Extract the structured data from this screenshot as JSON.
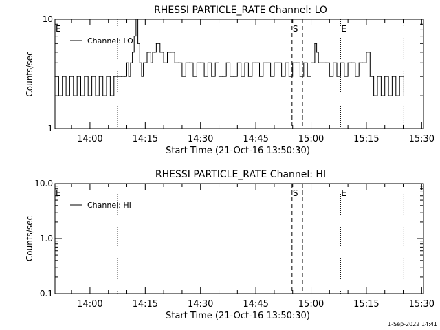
{
  "footer_stamp": "1-Sep-2022 14:41",
  "chart_data": [
    {
      "type": "line",
      "title": "RHESSI PARTICLE_RATE Channel: LO",
      "xlabel": "Start Time (21-Oct-16 13:50:30)",
      "ylabel": "Counts/sec",
      "y_scale": "log",
      "ylim": [
        1,
        10
      ],
      "xlim": [
        "13:50:30",
        "15:30:30"
      ],
      "x_ticks": [
        "14:00",
        "14:15",
        "14:30",
        "14:45",
        "15:00",
        "15:15",
        "15:30"
      ],
      "y_ticks": [
        "1",
        "10"
      ],
      "legend": {
        "label": "Channel: LO",
        "placement": "top-left"
      },
      "markers": [
        {
          "time": "14:07:30",
          "style": "dotted",
          "label": ""
        },
        {
          "time": "14:54:50",
          "style": "dashed",
          "label": "S"
        },
        {
          "time": "14:57:40",
          "style": "dashed",
          "label": ""
        },
        {
          "time": "15:08:00",
          "style": "dotted",
          "label": "E"
        },
        {
          "time": "15:25:10",
          "style": "dotted",
          "label": ""
        }
      ],
      "corner_label": "E",
      "grid": false,
      "series": [
        {
          "x": [
            "13:50:30",
            "13:51:30",
            "13:52:30",
            "13:53:30",
            "13:54:30",
            "13:55:30",
            "13:56:30",
            "13:57:30",
            "13:58:30",
            "13:59:30",
            "14:00:30",
            "14:01:30",
            "14:02:30",
            "14:03:30",
            "14:04:30",
            "14:05:30",
            "14:06:30",
            "14:07:30",
            "14:08:30",
            "14:09:30",
            "14:10:00",
            "14:10:30",
            "14:11:00",
            "14:11:30",
            "14:12:00",
            "14:12:30",
            "14:13:00",
            "14:13:30",
            "14:14:00",
            "14:14:30",
            "14:15:00",
            "14:15:30",
            "14:16:00",
            "14:16:30",
            "14:17:00",
            "14:17:30",
            "14:18:00",
            "14:19:00",
            "14:20:00",
            "14:21:00",
            "14:22:00",
            "14:23:00",
            "14:24:00",
            "14:25:00",
            "14:26:00",
            "14:27:00",
            "14:28:00",
            "14:29:00",
            "14:30:00",
            "14:31:00",
            "14:32:00",
            "14:33:00",
            "14:34:00",
            "14:35:00",
            "14:36:00",
            "14:37:00",
            "14:38:00",
            "14:39:00",
            "14:40:00",
            "14:41:00",
            "14:42:00",
            "14:43:00",
            "14:44:00",
            "14:45:00",
            "14:46:00",
            "14:47:00",
            "14:48:00",
            "14:49:00",
            "14:50:00",
            "14:51:00",
            "14:52:00",
            "14:53:00",
            "14:54:00",
            "14:55:00",
            "14:56:00",
            "14:57:00",
            "14:58:00",
            "14:59:00",
            "15:00:00",
            "15:00:30",
            "15:01:00",
            "15:01:30",
            "15:02:00",
            "15:03:00",
            "15:04:00",
            "15:05:00",
            "15:06:00",
            "15:07:00",
            "15:08:00",
            "15:09:00",
            "15:10:00",
            "15:11:00",
            "15:12:00",
            "15:13:00",
            "15:14:00",
            "15:15:00",
            "15:16:00",
            "15:17:00",
            "15:18:00",
            "15:19:00",
            "15:20:00",
            "15:21:00",
            "15:22:00",
            "15:23:00",
            "15:24:00",
            "15:25:10"
          ],
          "values": [
            3,
            2,
            3,
            2,
            3,
            2,
            3,
            2,
            3,
            2,
            3,
            2,
            3,
            2,
            3,
            2,
            3,
            3,
            3,
            3,
            4,
            3,
            4,
            5,
            7,
            10,
            6,
            4,
            3,
            4,
            4,
            5,
            5,
            4,
            5,
            5,
            6,
            5,
            4,
            5,
            5,
            4,
            4,
            3,
            4,
            4,
            3,
            4,
            4,
            3,
            4,
            3,
            4,
            3,
            3,
            4,
            3,
            3,
            4,
            3,
            4,
            3,
            4,
            4,
            3,
            4,
            4,
            3,
            4,
            4,
            3,
            4,
            3,
            4,
            4,
            3,
            4,
            3,
            4,
            4,
            6,
            5,
            4,
            4,
            4,
            3,
            4,
            3,
            4,
            3,
            4,
            4,
            3,
            4,
            4,
            5,
            3,
            2,
            3,
            2,
            3,
            2,
            3,
            2,
            3,
            2
          ]
        }
      ]
    },
    {
      "type": "line",
      "title": "RHESSI PARTICLE_RATE Channel: HI",
      "xlabel": "Start Time (21-Oct-16 13:50:30)",
      "ylabel": "Counts/sec",
      "y_scale": "log",
      "ylim": [
        0.1,
        10
      ],
      "xlim": [
        "13:50:30",
        "15:30:30"
      ],
      "x_ticks": [
        "14:00",
        "14:15",
        "14:30",
        "14:45",
        "15:00",
        "15:15",
        "15:30"
      ],
      "y_ticks": [
        "0.1",
        "1.0",
        "10.0"
      ],
      "legend": {
        "label": "Channel: HI",
        "placement": "top-left"
      },
      "markers": [
        {
          "time": "14:07:30",
          "style": "dotted",
          "label": ""
        },
        {
          "time": "14:54:50",
          "style": "dashed",
          "label": "S"
        },
        {
          "time": "14:57:40",
          "style": "dashed",
          "label": ""
        },
        {
          "time": "15:08:00",
          "style": "dotted",
          "label": "E"
        },
        {
          "time": "15:25:10",
          "style": "dotted",
          "label": ""
        }
      ],
      "corner_label": "E",
      "grid": false,
      "series": []
    }
  ]
}
